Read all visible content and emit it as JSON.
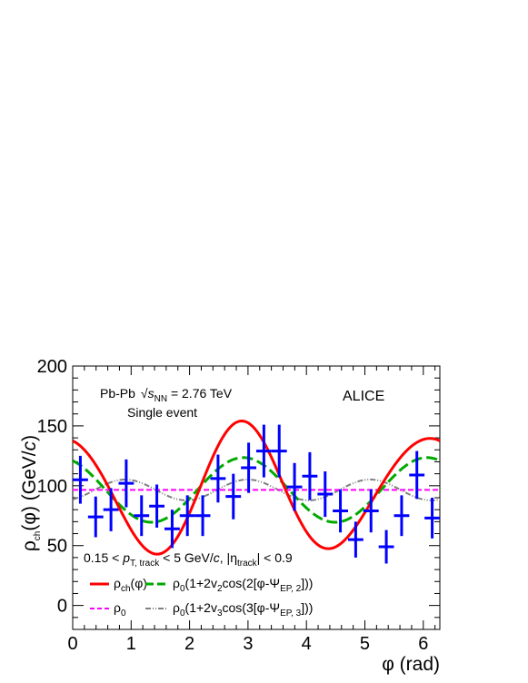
{
  "chart_data": {
    "type": "scatter",
    "title": "",
    "xlabel": "φ (rad)",
    "ylabel": "ρch(φ) (GeV/c)",
    "ylabel_parts": {
      "sym": "ρ",
      "sub": "ch",
      "rest": "(φ) (GeV/",
      "unit": "c",
      "close": ")"
    },
    "xlabel_parts": {
      "sym": "φ",
      "rest": " (rad)"
    },
    "xlim": [
      0,
      6.2832
    ],
    "ylim": [
      -20,
      200
    ],
    "x_ticks": [
      0,
      1,
      2,
      3,
      4,
      5,
      6
    ],
    "y_ticks": [
      0,
      50,
      100,
      150,
      200
    ],
    "grid": false,
    "annotations": {
      "system": "Pb-Pb",
      "energy_rest": " = 2.76 TeV",
      "event": "Single event",
      "experiment": "ALICE",
      "cuts_lo": "0.15 < ",
      "cuts_p": "p",
      "cuts_psub": "T, track",
      "cuts_mid": " < 5 GeV/",
      "cuts_c": "c",
      "cuts_eta_pre": ", |η",
      "cuts_eta_sub": "track",
      "cuts_eta_post": "| < 0.9"
    },
    "legend": {
      "placement": "bottom-left",
      "rho_ch": {
        "sym": "ρ",
        "sub": "ch",
        "rest": "(φ)"
      },
      "rho_0": {
        "sym": "ρ",
        "sub": "0"
      },
      "v2": {
        "pre": "(1+2v",
        "n": "2",
        "mid": "cos(2[φ-Ψ",
        "psub": "EP, 2",
        "post": "]))"
      },
      "v3": {
        "pre": "(1+2v",
        "n": "3",
        "mid": "cos(3[φ-Ψ",
        "psub": "EP, 3",
        "post": "]))"
      }
    },
    "colors": {
      "data": "#0000ff",
      "rho_ch": "#ff0000",
      "v2": "#00aa00",
      "rho_0": "#ff00ff",
      "v3": "#808080"
    },
    "series": [
      {
        "name": "ρch(φ)",
        "kind": "points",
        "x_half_width": 0.131,
        "points": [
          {
            "x": 0.131,
            "y": 105,
            "err": 20
          },
          {
            "x": 0.393,
            "y": 74,
            "err": 17
          },
          {
            "x": 0.655,
            "y": 80,
            "err": 18
          },
          {
            "x": 0.916,
            "y": 102,
            "err": 20
          },
          {
            "x": 1.178,
            "y": 75,
            "err": 17
          },
          {
            "x": 1.44,
            "y": 83,
            "err": 18
          },
          {
            "x": 1.702,
            "y": 64,
            "err": 16
          },
          {
            "x": 1.963,
            "y": 75,
            "err": 17
          },
          {
            "x": 2.225,
            "y": 75,
            "err": 17
          },
          {
            "x": 2.487,
            "y": 106,
            "err": 20
          },
          {
            "x": 2.749,
            "y": 91,
            "err": 19
          },
          {
            "x": 3.011,
            "y": 115,
            "err": 21
          },
          {
            "x": 3.272,
            "y": 129,
            "err": 22
          },
          {
            "x": 3.534,
            "y": 129,
            "err": 22
          },
          {
            "x": 3.796,
            "y": 99,
            "err": 20
          },
          {
            "x": 4.058,
            "y": 108,
            "err": 20
          },
          {
            "x": 4.32,
            "y": 93,
            "err": 19
          },
          {
            "x": 4.581,
            "y": 79,
            "err": 18
          },
          {
            "x": 4.843,
            "y": 55,
            "err": 15
          },
          {
            "x": 5.105,
            "y": 79,
            "err": 18
          },
          {
            "x": 5.367,
            "y": 49,
            "err": 14
          },
          {
            "x": 5.629,
            "y": 75,
            "err": 17
          },
          {
            "x": 5.89,
            "y": 109,
            "err": 20
          },
          {
            "x": 6.152,
            "y": 73,
            "err": 17
          }
        ]
      },
      {
        "name": "ρch(φ)",
        "kind": "curve_full",
        "rho0": 96.5,
        "v2": 0.26,
        "psi2": 2.92,
        "v3": 0.04,
        "psi3": 0.72
      },
      {
        "name": "ρ0(1+2v2cos(2[φ-ΨEP, 2]))",
        "kind": "curve_v2",
        "rho0": 96.5,
        "v2": 0.14,
        "psi2": 2.92
      },
      {
        "name": "ρ0",
        "kind": "constant",
        "rho0": 96.5
      },
      {
        "name": "ρ0(1+2v3cos(3[φ-ΨEP, 3]))",
        "kind": "curve_v3",
        "rho0": 96.5,
        "v3": 0.045,
        "psi3": 0.9
      }
    ]
  }
}
